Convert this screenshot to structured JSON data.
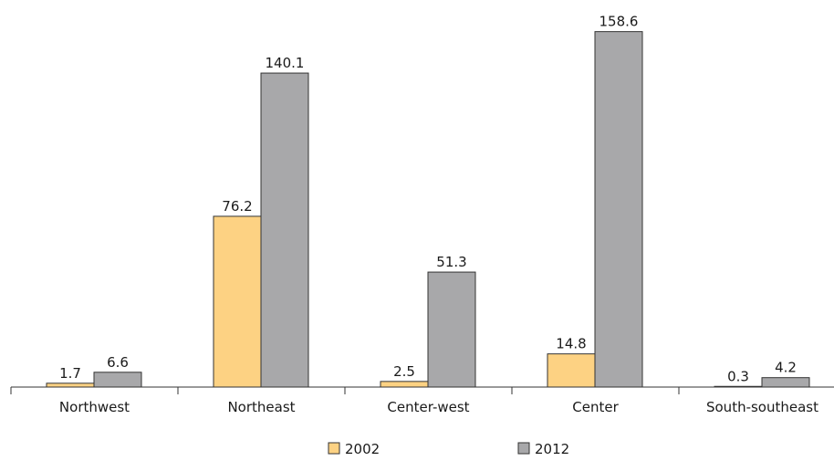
{
  "chart_data": {
    "type": "bar",
    "title": "",
    "xlabel": "",
    "ylabel": "",
    "ylim": [
      0,
      170
    ],
    "grid": false,
    "legend_position": "bottom-center",
    "categories": [
      "Northwest",
      "Northeast",
      "Center-west",
      "Center",
      "South-southeast"
    ],
    "series": [
      {
        "name": "2002",
        "color": "#FDD283",
        "values": [
          1.7,
          76.2,
          2.5,
          14.8,
          0.3
        ],
        "labels": [
          "1.7",
          "76.2",
          "2.5",
          "14.8",
          "0.3"
        ]
      },
      {
        "name": "2012",
        "color": "#A8A8AA",
        "values": [
          6.6,
          140.1,
          51.3,
          158.6,
          4.2
        ],
        "labels": [
          "6.6",
          "140.1",
          "51.3",
          "158.6",
          "4.2"
        ]
      }
    ]
  }
}
